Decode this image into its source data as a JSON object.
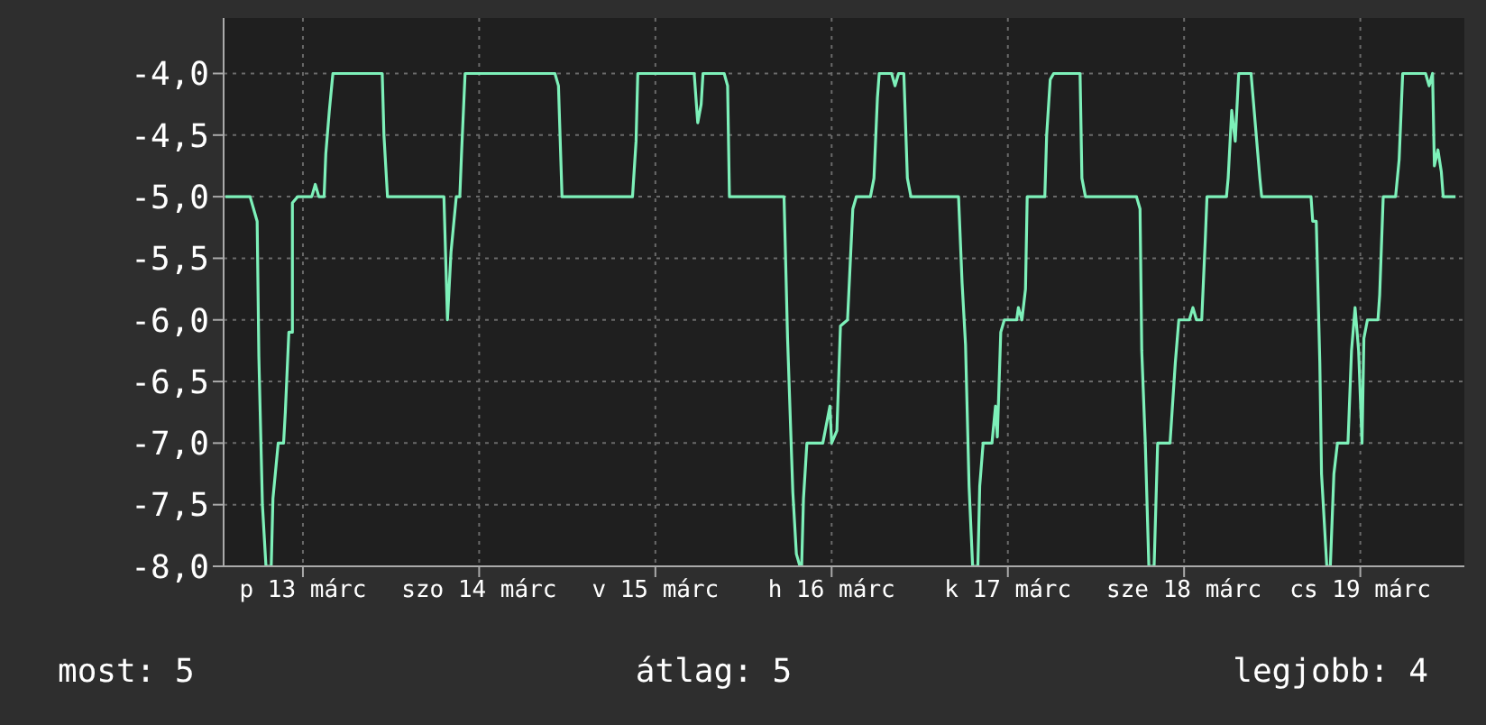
{
  "chart_data": {
    "type": "line",
    "xlim": [
      "--03-13T01:12",
      "--03-20T02:10"
    ],
    "xticks": [
      {
        "value": "--03-13T12:00",
        "label": "p 13 márc"
      },
      {
        "value": "--03-14T12:00",
        "label": "szo 14 márc"
      },
      {
        "value": "--03-15T12:00",
        "label": "v 15 márc"
      },
      {
        "value": "--03-16T12:00",
        "label": "h 16 márc"
      },
      {
        "value": "--03-17T12:00",
        "label": "k 17 márc"
      },
      {
        "value": "--03-18T12:00",
        "label": "sze 18 márc"
      },
      {
        "value": "--03-19T12:00",
        "label": "cs 19 márc"
      }
    ],
    "ylim": [
      -8,
      -3.55
    ],
    "yticks": [
      {
        "value": -8,
        "label": "-8,0"
      },
      {
        "value": -7.5,
        "label": "-7,5"
      },
      {
        "value": -7,
        "label": "-7,0"
      },
      {
        "value": -6.5,
        "label": "-6,5"
      },
      {
        "value": -6,
        "label": "-6,0"
      },
      {
        "value": -5.5,
        "label": "-5,5"
      },
      {
        "value": -5,
        "label": "-5,0"
      },
      {
        "value": -4.5,
        "label": "-4,5"
      },
      {
        "value": -4,
        "label": "-4,0"
      }
    ],
    "grid": true,
    "series": [
      {
        "color": "#7df0b9",
        "x": [
          "--03-13T01:26",
          "--03-13T04:48",
          "--03-13T05:17",
          "--03-13T05:46",
          "--03-13T06:00",
          "--03-13T06:29",
          "--03-13T06:58",
          "--03-13T07:41",
          "--03-13T07:55",
          "--03-13T08:38",
          "--03-13T09:22",
          "--03-13T09:36",
          "--03-13T10:05",
          "--03-13T10:34",
          "--03-13T10:34",
          "--03-13T11:17",
          "--03-13T13:12",
          "--03-13T13:41",
          "--03-13T14:10",
          "--03-13T14:53",
          "--03-13T15:07",
          "--03-13T15:36",
          "--03-13T16:05",
          "--03-13T22:48",
          "--03-13T23:02",
          "--03-13T23:31",
          "--03-14T07:12",
          "--03-14T07:41",
          "--03-14T08:10",
          "--03-14T08:53",
          "--03-14T09:22",
          "--03-14T09:36",
          "--03-14T10:05",
          "--03-14T22:19",
          "--03-14T22:48",
          "--03-14T23:17",
          "--03-15T08:53",
          "--03-15T09:22",
          "--03-15T09:36",
          "--03-15T17:17",
          "--03-15T17:46",
          "--03-15T18:14",
          "--03-15T18:29",
          "--03-15T21:22",
          "--03-15T21:50",
          "--03-15T22:05",
          "--03-16T05:31",
          "--03-16T06:00",
          "--03-16T06:43",
          "--03-16T07:12",
          "--03-16T07:41",
          "--03-16T07:55",
          "--03-16T08:10",
          "--03-16T08:38",
          "--03-16T10:48",
          "--03-16T11:46",
          "--03-16T12:00",
          "--03-16T12:43",
          "--03-16T13:12",
          "--03-16T14:10",
          "--03-16T14:53",
          "--03-16T15:22",
          "--03-16T17:17",
          "--03-16T17:46",
          "--03-16T18:14",
          "--03-16T18:29",
          "--03-16T20:10",
          "--03-16T20:38",
          "--03-16T21:07",
          "--03-16T21:50",
          "--03-16T22:19",
          "--03-16T22:48",
          "--03-17T05:17",
          "--03-17T05:46",
          "--03-17T06:14",
          "--03-17T06:43",
          "--03-17T07:12",
          "--03-17T07:55",
          "--03-17T08:10",
          "--03-17T08:38",
          "--03-17T09:50",
          "--03-17T10:19",
          "--03-17T10:34",
          "--03-17T11:02",
          "--03-17T11:31",
          "--03-17T13:12",
          "--03-17T13:26",
          "--03-17T13:55",
          "--03-17T14:24",
          "--03-17T14:38",
          "--03-17T17:02",
          "--03-17T17:17",
          "--03-17T17:46",
          "--03-17T18:14",
          "--03-17T21:50",
          "--03-17T22:05",
          "--03-17T22:34",
          "--03-18T05:31",
          "--03-18T06:00",
          "--03-18T06:14",
          "--03-18T06:43",
          "--03-18T07:12",
          "--03-18T07:55",
          "--03-18T08:24",
          "--03-18T10:05",
          "--03-18T10:48",
          "--03-18T11:17",
          "--03-18T12:43",
          "--03-18T13:12",
          "--03-18T13:41",
          "--03-18T14:24",
          "--03-18T14:53",
          "--03-18T15:07",
          "--03-18T17:46",
          "--03-18T18:00",
          "--03-18T18:29",
          "--03-18T18:58",
          "--03-18T19:26",
          "--03-18T21:07",
          "--03-18T22:19",
          "--03-18T22:34",
          "--03-19T05:17",
          "--03-19T05:31",
          "--03-19T06:00",
          "--03-19T06:29",
          "--03-19T06:43",
          "--03-19T07:26",
          "--03-19T07:55",
          "--03-19T08:24",
          "--03-19T08:53",
          "--03-19T10:19",
          "--03-19T10:48",
          "--03-19T11:17",
          "--03-19T11:46",
          "--03-19T12:14",
          "--03-19T12:29",
          "--03-19T12:58",
          "--03-19T14:24",
          "--03-19T14:38",
          "--03-19T15:07",
          "--03-19T16:48",
          "--03-19T17:17",
          "--03-19T17:46",
          "--03-19T20:53",
          "--03-19T21:22",
          "--03-19T21:50",
          "--03-19T22:05",
          "--03-19T22:34",
          "--03-19T23:02",
          "--03-19T23:17",
          "--03-20T00:58"
        ],
        "values": [
          -5,
          -5,
          -5.1,
          -5.2,
          -6.3,
          -7.5,
          -8,
          -8,
          -7.45,
          -7,
          -7,
          -6.75,
          -6.1,
          -6.1,
          -5.05,
          -5,
          -5,
          -4.9,
          -5,
          -5,
          -4.65,
          -4.3,
          -4,
          -4,
          -4.5,
          -5,
          -5,
          -6,
          -5.45,
          -5,
          -5,
          -4.65,
          -4,
          -4,
          -4.1,
          -5,
          -5,
          -4.55,
          -4,
          -4,
          -4.4,
          -4.25,
          -4,
          -4,
          -4.1,
          -5,
          -5,
          -6.15,
          -7.4,
          -7.9,
          -8,
          -8,
          -7.45,
          -7,
          -7,
          -6.7,
          -7,
          -6.9,
          -6.05,
          -6,
          -5.1,
          -5,
          -5,
          -4.85,
          -4.2,
          -4,
          -4,
          -4.1,
          -4,
          -4,
          -4.85,
          -5,
          -5,
          -5.7,
          -6.2,
          -7.35,
          -8,
          -8,
          -7.35,
          -7,
          -7,
          -6.7,
          -6.95,
          -6.1,
          -6,
          -6,
          -5.9,
          -6,
          -5.75,
          -5,
          -5,
          -4.5,
          -4.05,
          -4,
          -4,
          -4.85,
          -5,
          -5,
          -5.1,
          -6.25,
          -7,
          -8,
          -8,
          -7,
          -7,
          -6.35,
          -6,
          -6,
          -5.9,
          -6,
          -6,
          -5.35,
          -5,
          -5,
          -4.85,
          -4.3,
          -4.55,
          -4,
          -4,
          -4.85,
          -5,
          -5,
          -5.2,
          -5.2,
          -6.35,
          -7.25,
          -8,
          -8,
          -7.25,
          -7,
          -7,
          -6.25,
          -5.9,
          -6.25,
          -7,
          -6.15,
          -6,
          -6,
          -5.8,
          -5,
          -5,
          -4.7,
          -4,
          -4,
          -4.1,
          -4,
          -4.75,
          -4.62,
          -4.8,
          -5,
          -5
        ]
      }
    ],
    "annotations": [
      "most: 5",
      "átlag: 5",
      "legjobb: 4"
    ]
  }
}
